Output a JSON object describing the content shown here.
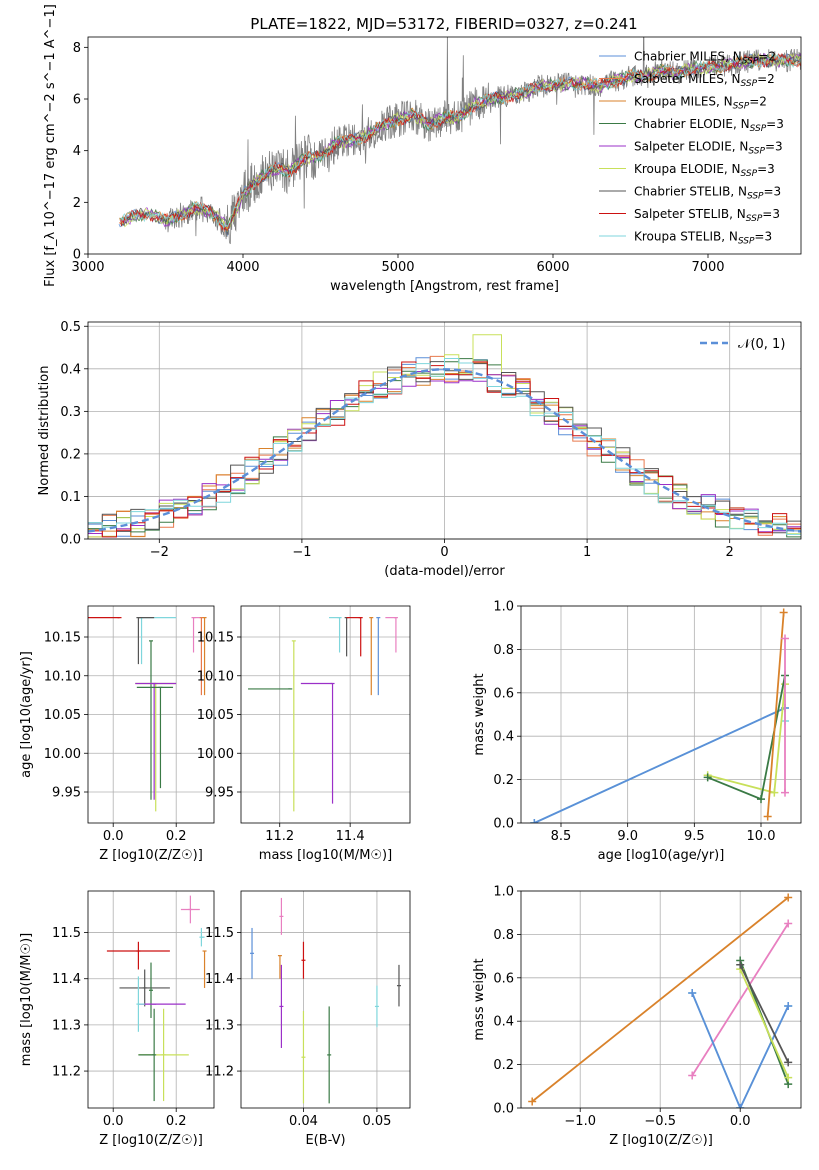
{
  "figure": {
    "title": "PLATE=1822, MJD=53172, FIBERID=0327, z=0.241"
  },
  "colors": {
    "Chabrier MILES": "#5b8fd8",
    "Salpeter MILES": "#e8794d",
    "Kroupa MILES": "#d9822b",
    "Chabrier ELODIE": "#3a7a45",
    "Salpeter ELODIE": "#9b30c8",
    "Kroupa ELODIE": "#c8e05a",
    "Chabrier STELIB": "#555555",
    "Salpeter STELIB": "#cc1111",
    "Kroupa STELIB": "#7fd6dc",
    "spectrum": "#808080",
    "normal_curve": "#5b8fd8",
    "pink": "#e87fc0"
  },
  "chart_data": [
    {
      "id": "spectrum",
      "type": "line",
      "xlabel": "wavelength [Angstrom, rest frame]",
      "ylabel": "Flux [f_λ 10^−17 erg cm^−2 s^−1 A^−1]",
      "xlim": [
        3000,
        7600
      ],
      "ylim": [
        0,
        8.4
      ],
      "xticks": [
        "3000",
        "4000",
        "5000",
        "6000",
        "7000"
      ],
      "yticks": [
        "0",
        "2",
        "4",
        "6",
        "8"
      ],
      "grid": false,
      "legend_position": "top-right",
      "legend": [
        "Chabrier MILES, N_SSP=2",
        "Salpeter MILES, N_SSP=2",
        "Kroupa MILES, N_SSP=2",
        "Chabrier ELODIE, N_SSP=3",
        "Salpeter ELODIE, N_SSP=3",
        "Kroupa ELODIE, N_SSP=3",
        "Chabrier STELIB, N_SSP=3",
        "Salpeter STELIB, N_SSP=3",
        "Kroupa STELIB, N_SSP=3"
      ],
      "continuum": {
        "x": [
          3200,
          3300,
          3400,
          3500,
          3600,
          3700,
          3800,
          3900,
          4000,
          4100,
          4200,
          4300,
          4400,
          4500,
          4600,
          4700,
          4800,
          4900,
          5000,
          5100,
          5200,
          5300,
          5400,
          5500,
          5600,
          5700,
          5800,
          5900,
          6000,
          6100,
          6200,
          6300,
          6400,
          6500,
          6600,
          6700,
          6800,
          6900,
          7000,
          7100,
          7200,
          7300
        ],
        "y": [
          1.2,
          1.5,
          1.55,
          1.3,
          1.5,
          1.8,
          1.6,
          1.0,
          2.3,
          2.9,
          3.3,
          3.2,
          3.7,
          3.8,
          4.3,
          4.4,
          4.6,
          5.0,
          5.2,
          5.4,
          5.0,
          5.3,
          5.3,
          5.8,
          6.0,
          6.1,
          6.2,
          6.5,
          6.5,
          6.6,
          6.6,
          6.5,
          6.7,
          6.9,
          6.9,
          7.1,
          7.0,
          7.2,
          7.2,
          7.3,
          7.4,
          7.5
        ]
      }
    },
    {
      "id": "residuals",
      "type": "line",
      "xlabel": "(data-model)/error",
      "ylabel": "Normed distribution",
      "xlim": [
        -2.5,
        2.5
      ],
      "ylim": [
        0,
        0.51
      ],
      "xticks": [
        "−2",
        "−1",
        "0",
        "1",
        "2"
      ],
      "yticks": [
        "0.0",
        "0.1",
        "0.2",
        "0.3",
        "0.4",
        "0.5"
      ],
      "grid": true,
      "legend_position": "top-right",
      "legend": [
        "𝒩(0, 1)"
      ],
      "normal_mean": 0,
      "normal_sigma": 1,
      "bin_width": 0.1
    },
    {
      "id": "age-vs-Z",
      "type": "scatter",
      "xlabel": "Z [log10(Z/Z☉)]",
      "ylabel": "age  [log10(age/yr)]",
      "xlim": [
        -0.08,
        0.32
      ],
      "ylim": [
        9.91,
        10.19
      ],
      "xticks": [
        "0.0",
        "0.2"
      ],
      "yticks": [
        "9.95",
        "10.00",
        "10.05",
        "10.10",
        "10.15"
      ],
      "grid": true,
      "points": [
        {
          "model": "Salpeter STELIB",
          "x": 0.02,
          "y": 10.175,
          "xerr": [
            0.1,
            0.0
          ],
          "yerr": [
            0.0,
            0.0
          ]
        },
        {
          "model": "Kroupa STELIB",
          "x": 0.09,
          "y": 10.175,
          "xerr": [
            0.0,
            0.11
          ],
          "yerr": [
            0.06,
            0.0
          ]
        },
        {
          "model": "Chabrier STELIB",
          "x": 0.08,
          "y": 10.175,
          "xerr": [
            0.0,
            0.05
          ],
          "yerr": [
            0.06,
            0.0
          ]
        },
        {
          "model": "Chabrier ELODIE",
          "x": 0.12,
          "y": 10.145,
          "xerr": [
            0.0,
            0.0
          ],
          "yerr": [
            0.205,
            0.0
          ]
        },
        {
          "model": "Kroupa ELODIE",
          "x": 0.135,
          "y": 10.09,
          "xerr": [
            0.065,
            0.065
          ],
          "yerr": [
            0.165,
            0.0
          ]
        },
        {
          "model": "Salpeter ELODIE",
          "x": 0.13,
          "y": 10.09,
          "xerr": [
            0.06,
            0.07
          ],
          "yerr": [
            0.15,
            0.0
          ]
        },
        {
          "model": "Chabrier ELODIE",
          "x": 0.15,
          "y": 10.085,
          "xerr": [
            0.075,
            0.04
          ],
          "yerr": [
            0.13,
            0.0
          ]
        },
        {
          "model": "Salpeter MILES",
          "x": 0.28,
          "y": 10.175,
          "xerr": [
            0.0,
            0.0
          ],
          "yerr": [
            0.1,
            0.0
          ]
        },
        {
          "model": "Kroupa MILES",
          "x": 0.29,
          "y": 10.175,
          "xerr": [
            0.0,
            0.0
          ],
          "yerr": [
            0.1,
            0.0
          ]
        },
        {
          "model": "pink",
          "x": 0.255,
          "y": 10.175,
          "xerr": [
            0.0,
            0.02
          ],
          "yerr": [
            0.045,
            0.0
          ]
        }
      ]
    },
    {
      "id": "age-vs-mass",
      "type": "scatter",
      "xlabel": "mass [log10(M/M☉)]",
      "ylabel": "",
      "xlim": [
        11.09,
        11.57
      ],
      "ylim": [
        9.91,
        10.19
      ],
      "xticks": [
        "11.2",
        "11.4"
      ],
      "yticks": [
        "9.95",
        "10.00",
        "10.05",
        "10.10",
        "10.15"
      ],
      "grid": true,
      "points": [
        {
          "model": "Kroupa ELODIE",
          "x": 11.24,
          "y": 10.145,
          "xerr": [
            0.0,
            0.0
          ],
          "yerr": [
            0.22,
            0.0
          ]
        },
        {
          "model": "Chabrier ELODIE",
          "x": 11.23,
          "y": 10.083,
          "xerr": [
            0.12,
            0.0
          ],
          "yerr": [
            0.0,
            0.0
          ]
        },
        {
          "model": "Salpeter ELODIE",
          "x": 11.35,
          "y": 10.09,
          "xerr": [
            0.09,
            0.0
          ],
          "yerr": [
            0.155,
            0.0
          ]
        },
        {
          "model": "Kroupa STELIB",
          "x": 11.37,
          "y": 10.175,
          "xerr": [
            0.03,
            0.0
          ],
          "yerr": [
            0.045,
            0.0
          ]
        },
        {
          "model": "Chabrier STELIB",
          "x": 11.39,
          "y": 10.175,
          "xerr": [
            0.0,
            0.0
          ],
          "yerr": [
            0.05,
            0.0
          ]
        },
        {
          "model": "Salpeter STELIB",
          "x": 11.43,
          "y": 10.175,
          "xerr": [
            0.04,
            0.0
          ],
          "yerr": [
            0.05,
            0.0
          ]
        },
        {
          "model": "Kroupa MILES",
          "x": 11.46,
          "y": 10.175,
          "xerr": [
            0.0,
            0.0
          ],
          "yerr": [
            0.1,
            0.0
          ]
        },
        {
          "model": "Chabrier MILES",
          "x": 11.48,
          "y": 10.175,
          "xerr": [
            0.0,
            0.0
          ],
          "yerr": [
            0.1,
            0.0
          ]
        },
        {
          "model": "pink",
          "x": 11.53,
          "y": 10.175,
          "xerr": [
            0.03,
            0.0
          ],
          "yerr": [
            0.045,
            0.0
          ]
        }
      ]
    },
    {
      "id": "weight-vs-age",
      "type": "line",
      "xlabel": "age  [log10(age/yr)]",
      "ylabel": "mass weight",
      "xlim": [
        8.2,
        10.3
      ],
      "ylim": [
        0,
        1
      ],
      "xticks": [
        "8.5",
        "9.0",
        "9.5",
        "10.0"
      ],
      "yticks": [
        "0.0",
        "0.2",
        "0.4",
        "0.6",
        "0.8",
        "1.0"
      ],
      "grid": true,
      "series": [
        {
          "model": "Kroupa STELIB",
          "x": [
            8.3,
            10.18,
            10.18
          ],
          "y": [
            0.0,
            0.53,
            0.47
          ]
        },
        {
          "model": "Chabrier MILES",
          "x": [
            8.3,
            10.18
          ],
          "y": [
            0.0,
            0.53
          ]
        },
        {
          "model": "Kroupa ELODIE",
          "x": [
            9.6,
            10.1,
            10.18
          ],
          "y": [
            0.22,
            0.14,
            0.64
          ]
        },
        {
          "model": "Chabrier ELODIE",
          "x": [
            9.6,
            10.0,
            10.18
          ],
          "y": [
            0.21,
            0.11,
            0.68
          ]
        },
        {
          "model": "Kroupa MILES",
          "x": [
            10.05,
            10.17
          ],
          "y": [
            0.03,
            0.97
          ]
        },
        {
          "model": "pink",
          "x": [
            10.18,
            10.18
          ],
          "y": [
            0.85,
            0.14
          ]
        }
      ]
    },
    {
      "id": "mass-vs-Z",
      "type": "scatter",
      "xlabel": "Z [log10(Z/Z☉)]",
      "ylabel": "mass [log10(M/M☉)]",
      "xlim": [
        -0.08,
        0.32
      ],
      "ylim": [
        11.12,
        11.59
      ],
      "xticks": [
        "0.0",
        "0.2"
      ],
      "yticks": [
        "11.2",
        "11.3",
        "11.4",
        "11.5"
      ],
      "grid": true,
      "points": [
        {
          "model": "pink",
          "x": 0.245,
          "y": 11.55,
          "xerr": [
            0.03,
            0.03
          ],
          "yerr": [
            0.03,
            0.03
          ]
        },
        {
          "model": "Salpeter STELIB",
          "x": 0.08,
          "y": 11.46,
          "xerr": [
            0.1,
            0.1
          ],
          "yerr": [
            0.04,
            0.02
          ]
        },
        {
          "model": "Kroupa STELIB",
          "x": 0.28,
          "y": 11.49,
          "xerr": [
            0.0,
            0.01
          ],
          "yerr": [
            0.02,
            0.02
          ]
        },
        {
          "model": "Kroupa MILES",
          "x": 0.29,
          "y": 11.46,
          "xerr": [
            0.0,
            0.0
          ],
          "yerr": [
            0.08,
            0.0
          ]
        },
        {
          "model": "Chabrier STELIB",
          "x": 0.1,
          "y": 11.38,
          "xerr": [
            0.08,
            0.08
          ],
          "yerr": [
            0.04,
            0.04
          ]
        },
        {
          "model": "Chabrier ELODIE",
          "x": 0.12,
          "y": 11.375,
          "xerr": [
            0.0,
            0.0
          ],
          "yerr": [
            0.06,
            0.06
          ]
        },
        {
          "model": "Salpeter ELODIE",
          "x": 0.13,
          "y": 11.345,
          "xerr": [
            0.05,
            0.1
          ],
          "yerr": [
            0.0,
            0.0
          ]
        },
        {
          "model": "Kroupa STELIB",
          "x": 0.08,
          "y": 11.345,
          "xerr": [
            0.0,
            0.02
          ],
          "yerr": [
            0.06,
            0.06
          ]
        },
        {
          "model": "Kroupa ELODIE",
          "x": 0.16,
          "y": 11.235,
          "xerr": [
            0.08,
            0.08
          ],
          "yerr": [
            0.1,
            0.1
          ]
        },
        {
          "model": "Chabrier ELODIE",
          "x": 0.13,
          "y": 11.235,
          "xerr": [
            0.05,
            0.0
          ],
          "yerr": [
            0.1,
            0.1
          ]
        }
      ]
    },
    {
      "id": "mass-vs-EBV",
      "type": "scatter",
      "xlabel": "E(B-V)",
      "ylabel": "",
      "xlim": [
        0.0315,
        0.0545
      ],
      "ylim": [
        11.12,
        11.59
      ],
      "xticks": [
        "0.04",
        "0.05"
      ],
      "yticks": [
        "11.2",
        "11.3",
        "11.4",
        "11.5"
      ],
      "grid": true,
      "points": [
        {
          "model": "Chabrier MILES",
          "x": 0.033,
          "y": 11.455,
          "xerr": [
            0.0,
            0.0
          ],
          "yerr": [
            0.055,
            0.055
          ]
        },
        {
          "model": "pink",
          "x": 0.037,
          "y": 11.535,
          "xerr": [
            0.0,
            0.0
          ],
          "yerr": [
            0.04,
            0.04
          ]
        },
        {
          "model": "Kroupa MILES",
          "x": 0.0368,
          "y": 11.45,
          "xerr": [
            0.0,
            0.0
          ],
          "yerr": [
            0.05,
            0.0
          ]
        },
        {
          "model": "Salpeter ELODIE",
          "x": 0.037,
          "y": 11.34,
          "xerr": [
            0.0,
            0.0
          ],
          "yerr": [
            0.09,
            0.09
          ]
        },
        {
          "model": "Salpeter STELIB",
          "x": 0.04,
          "y": 11.44,
          "xerr": [
            0.0,
            0.0
          ],
          "yerr": [
            0.04,
            0.04
          ]
        },
        {
          "model": "Kroupa ELODIE",
          "x": 0.04,
          "y": 11.23,
          "xerr": [
            0.0,
            0.0
          ],
          "yerr": [
            0.1,
            0.1
          ]
        },
        {
          "model": "Chabrier ELODIE",
          "x": 0.0435,
          "y": 11.235,
          "xerr": [
            0.0,
            0.0
          ],
          "yerr": [
            0.105,
            0.105
          ]
        },
        {
          "model": "Kroupa STELIB",
          "x": 0.05,
          "y": 11.34,
          "xerr": [
            0.0,
            0.0
          ],
          "yerr": [
            0.045,
            0.045
          ]
        },
        {
          "model": "Chabrier STELIB",
          "x": 0.053,
          "y": 11.385,
          "xerr": [
            0.0,
            0.0
          ],
          "yerr": [
            0.045,
            0.045
          ]
        }
      ]
    },
    {
      "id": "weight-vs-Z",
      "type": "line",
      "xlabel": "Z [log10(Z/Z☉)]",
      "ylabel": "mass weight",
      "xlim": [
        -1.37,
        0.38
      ],
      "ylim": [
        0,
        1
      ],
      "xticks": [
        "−1.0",
        "−0.5",
        "0.0"
      ],
      "yticks": [
        "0.0",
        "0.2",
        "0.4",
        "0.6",
        "0.8",
        "1.0"
      ],
      "grid": true,
      "series": [
        {
          "model": "Kroupa MILES",
          "x": [
            -1.3,
            0.3
          ],
          "y": [
            0.03,
            0.97
          ]
        },
        {
          "model": "pink",
          "x": [
            -0.3,
            0.3
          ],
          "y": [
            0.15,
            0.85
          ]
        },
        {
          "model": "Kroupa STELIB",
          "x": [
            -0.3,
            0.0,
            0.3
          ],
          "y": [
            0.53,
            0.0,
            0.47
          ]
        },
        {
          "model": "Chabrier MILES",
          "x": [
            -0.3,
            0.0,
            0.3
          ],
          "y": [
            0.53,
            0.0,
            0.47
          ]
        },
        {
          "model": "Chabrier ELODIE",
          "x": [
            0.0,
            0.3
          ],
          "y": [
            0.68,
            0.11
          ]
        },
        {
          "model": "Kroupa ELODIE",
          "x": [
            0.0,
            0.3
          ],
          "y": [
            0.64,
            0.14
          ]
        },
        {
          "model": "Chabrier STELIB",
          "x": [
            0.0,
            0.3
          ],
          "y": [
            0.66,
            0.21
          ]
        }
      ]
    }
  ]
}
